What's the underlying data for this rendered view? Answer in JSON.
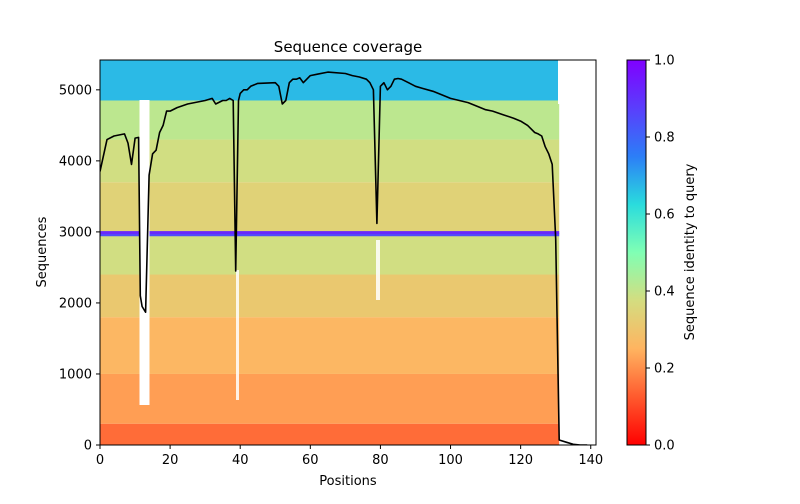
{
  "chart_data": {
    "type": "heatmap",
    "title": "Sequence coverage",
    "xlabel": "Positions",
    "ylabel": "Sequences",
    "xlim": [
      0,
      141.5
    ],
    "ylim": [
      0,
      5420
    ],
    "xticks": [
      0,
      20,
      40,
      60,
      80,
      100,
      120,
      140
    ],
    "yticks": [
      0,
      1000,
      2000,
      3000,
      4000,
      5000
    ],
    "colorbar": {
      "label": "Sequence identity to query",
      "colormap": "rainbow_r",
      "range": [
        0,
        1
      ],
      "ticks": [
        0.0,
        0.2,
        0.4,
        0.6,
        0.8,
        1.0
      ]
    },
    "identity_bands": [
      {
        "from": 0,
        "to": 300,
        "identity": 0.15
      },
      {
        "from": 300,
        "to": 1000,
        "identity": 0.22
      },
      {
        "from": 1000,
        "to": 1800,
        "identity": 0.26
      },
      {
        "from": 1800,
        "to": 2400,
        "identity": 0.31
      },
      {
        "from": 2400,
        "to": 3000,
        "identity": 0.38
      },
      {
        "from": 3000,
        "to": 3700,
        "identity": 0.34
      },
      {
        "from": 3700,
        "to": 4300,
        "identity": 0.38
      },
      {
        "from": 4300,
        "to": 4850,
        "identity": 0.41
      },
      {
        "from": 4850,
        "to": 5420,
        "identity": 0.67
      }
    ],
    "highlight_rows": [
      {
        "y": 2960,
        "identity": 0.85
      },
      {
        "y": 2990,
        "identity": 0.92
      }
    ],
    "coverage_line": {
      "x": [
        0,
        2,
        4,
        7,
        8,
        9,
        10,
        11,
        11.5,
        12,
        13,
        14,
        15,
        16,
        17,
        18,
        19,
        20,
        22,
        25,
        30,
        32,
        33,
        35,
        36,
        37,
        38,
        38.7,
        39.5,
        40,
        41,
        42,
        43,
        45,
        50,
        51,
        52,
        53,
        54,
        55,
        56,
        57,
        58,
        60,
        62,
        65,
        70,
        72,
        74,
        76,
        77,
        78,
        79,
        80,
        81,
        82,
        83,
        84,
        85,
        86,
        88,
        90,
        92,
        95,
        98,
        100,
        105,
        108,
        110,
        112,
        115,
        118,
        120,
        122,
        124,
        125,
        126,
        127,
        128,
        129,
        130,
        131,
        133,
        135,
        137,
        139
      ],
      "y": [
        3850,
        4300,
        4350,
        4380,
        4250,
        3950,
        4320,
        4330,
        2100,
        1950,
        1870,
        3800,
        4100,
        4150,
        4400,
        4500,
        4700,
        4700,
        4750,
        4800,
        4850,
        4880,
        4800,
        4850,
        4850,
        4880,
        4850,
        2450,
        4850,
        4950,
        5000,
        5000,
        5050,
        5090,
        5100,
        5050,
        4800,
        4850,
        5100,
        5150,
        5150,
        5170,
        5100,
        5200,
        5220,
        5250,
        5230,
        5200,
        5180,
        5150,
        5100,
        5000,
        3120,
        5050,
        5100,
        5000,
        5050,
        5150,
        5160,
        5150,
        5100,
        5050,
        5020,
        4980,
        4920,
        4880,
        4820,
        4760,
        4720,
        4700,
        4650,
        4600,
        4560,
        4500,
        4400,
        4380,
        4350,
        4200,
        4100,
        3950,
        2900,
        70,
        40,
        10,
        0,
        0
      ]
    }
  }
}
